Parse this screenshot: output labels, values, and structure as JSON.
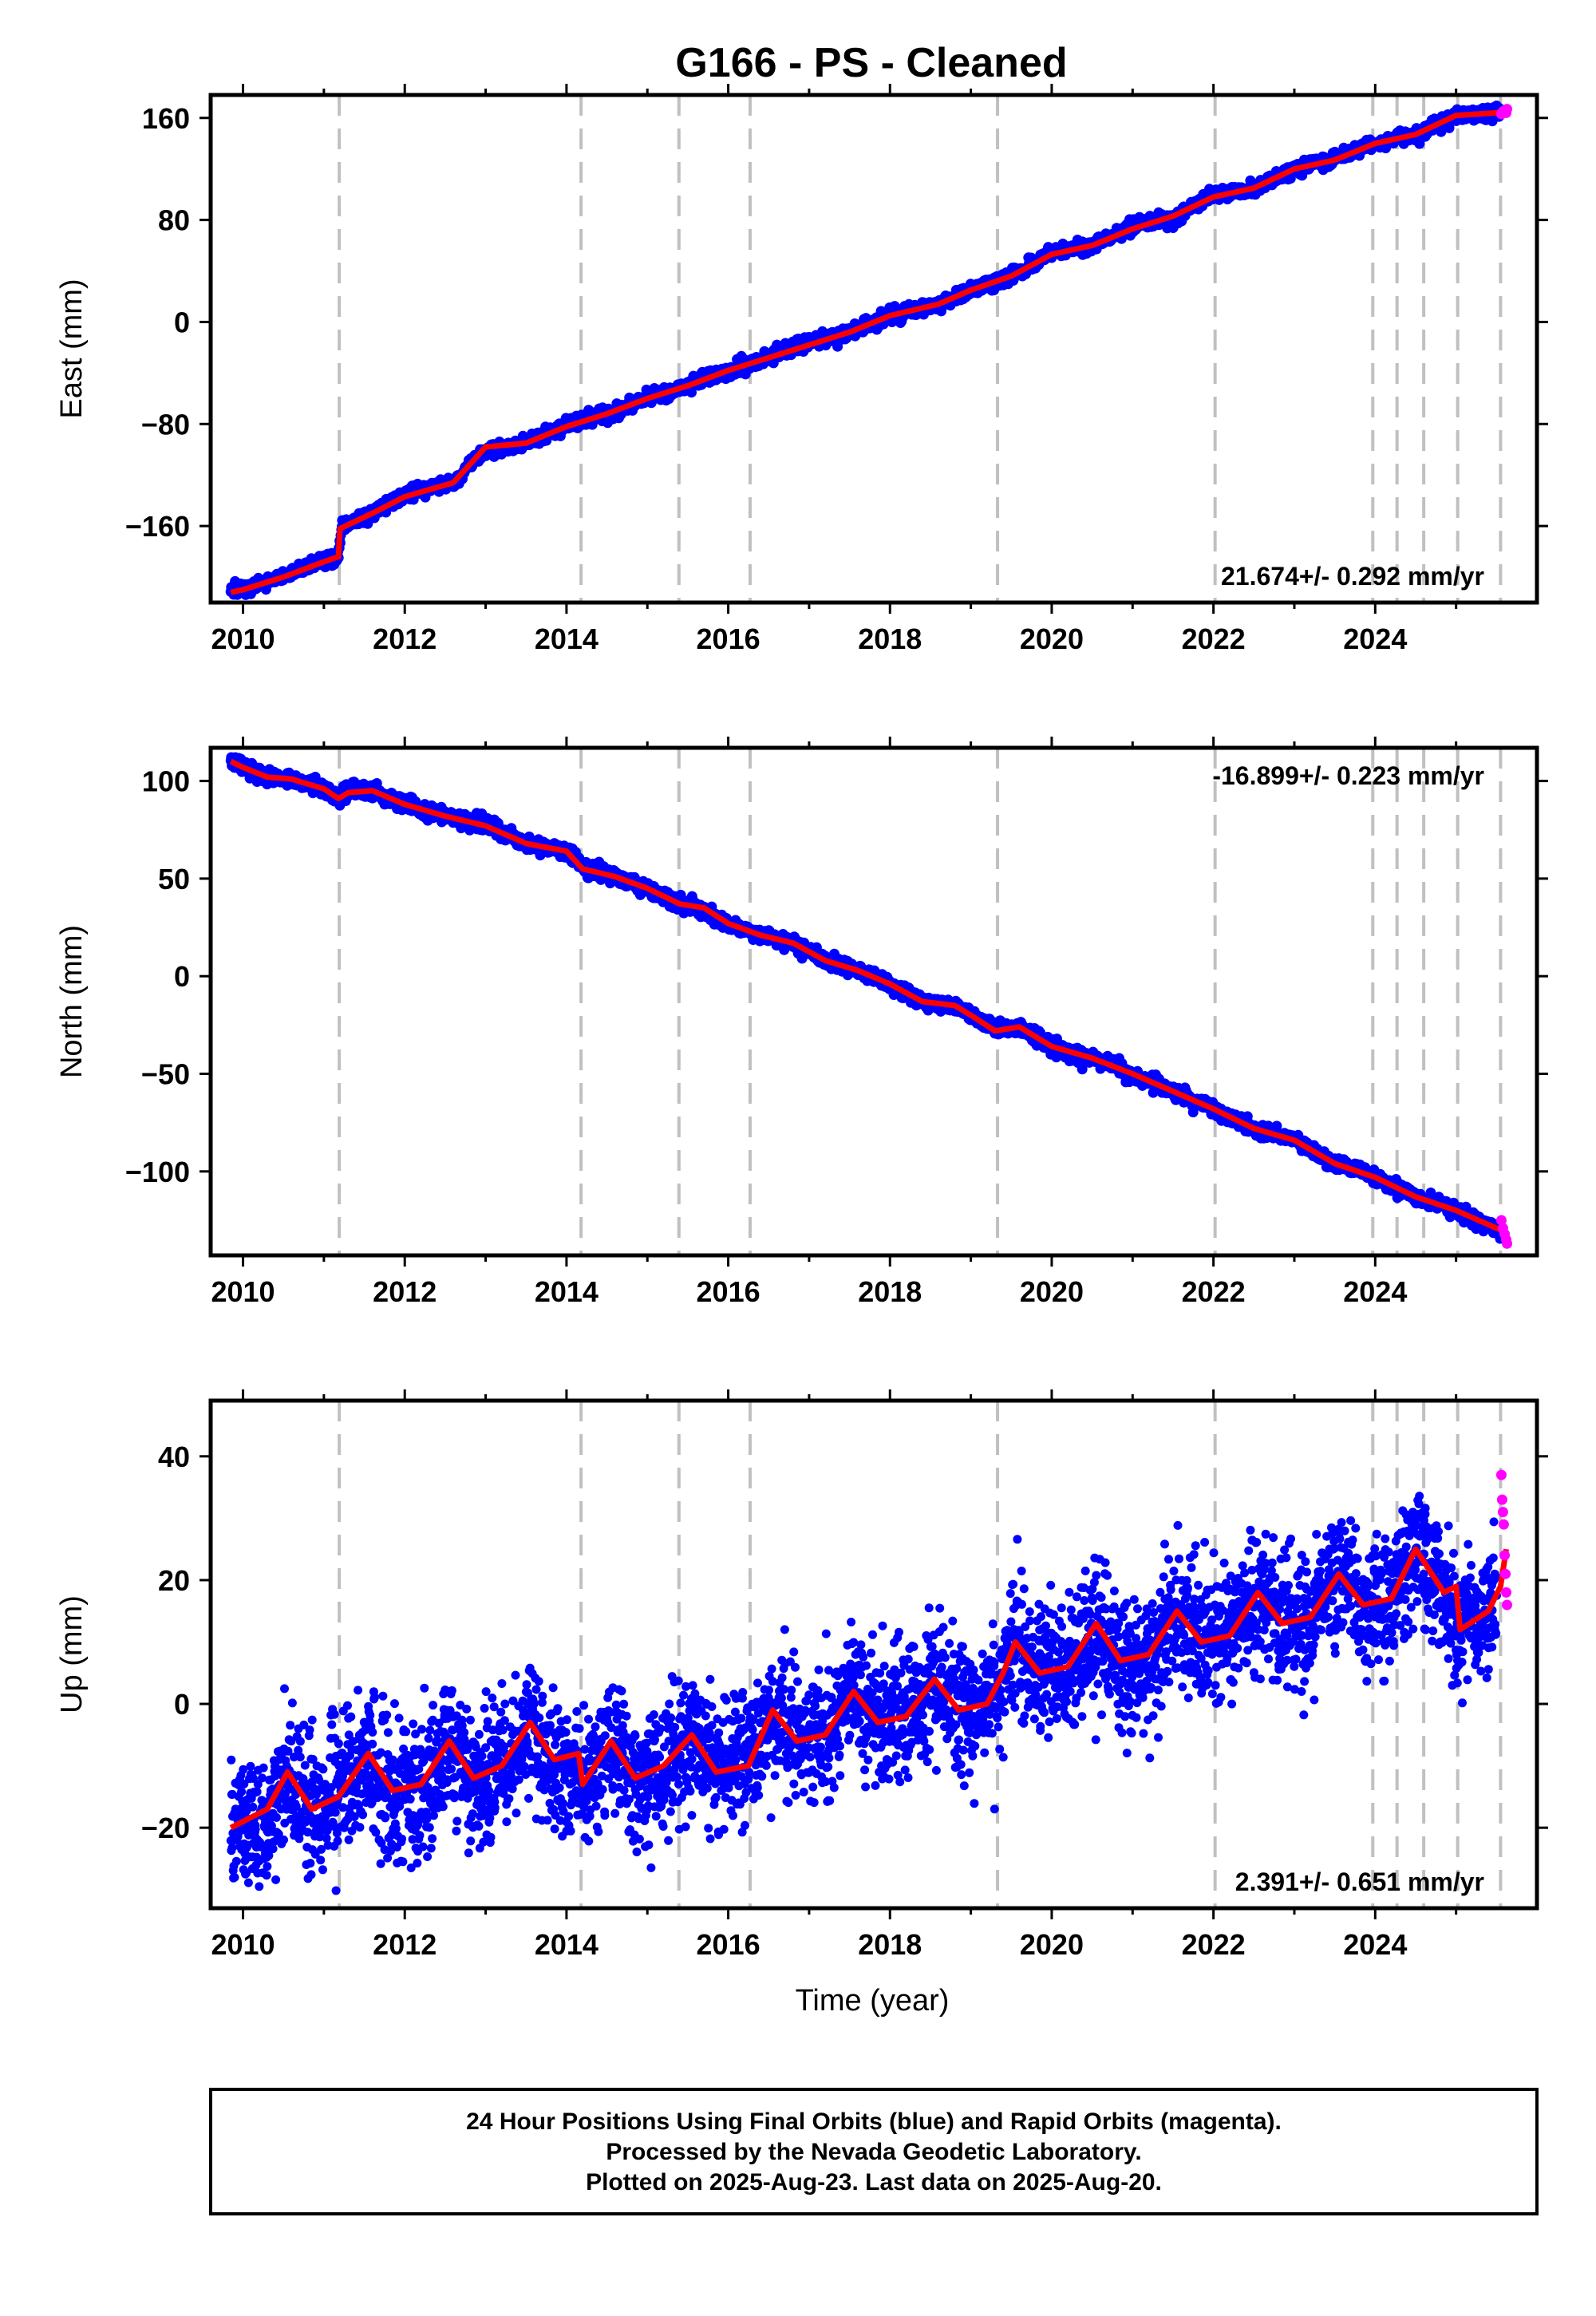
{
  "title": "G166  - PS - Cleaned",
  "footer": {
    "lines": [
      "24 Hour Positions Using Final Orbits (blue) and Rapid Orbits (magenta).",
      "Processed by the Nevada Geodetic Laboratory.",
      "Plotted on 2025-Aug-23. Last data on 2025-Aug-20."
    ]
  },
  "colors": {
    "final_orbits": "#0000ff",
    "rapid_orbits": "#ff00ff",
    "model_fit": "#ff0000",
    "equipment_change_lines": "#c0c0c0",
    "frame": "#000000"
  },
  "chart_data": [
    {
      "type": "scatter",
      "panel": "east",
      "ylabel": "East (mm)",
      "xlabel": "",
      "rate_label": "21.674+/- 0.292 mm/yr",
      "rate_placement": "bottom-right",
      "xlim": [
        2009.6,
        2026.0
      ],
      "ylim": [
        -220,
        178
      ],
      "xticks": [
        2010,
        2012,
        2014,
        2016,
        2018,
        2020,
        2022,
        2024
      ],
      "xtick_labels": [
        "2010",
        "2012",
        "2014",
        "2016",
        "2018",
        "2020",
        "2022",
        "2024"
      ],
      "yticks": [
        -160,
        -80,
        0,
        80,
        160
      ],
      "ytick_labels": [
        "−160",
        "−80",
        "0",
        "80",
        "160"
      ],
      "grid": false,
      "vertical_dashed_lines": [
        2011.19,
        2014.18,
        2015.39,
        2016.27,
        2019.33,
        2022.02,
        2023.97,
        2024.27,
        2024.6,
        2025.02,
        2025.55
      ],
      "series": [
        {
          "name": "Final Orbits",
          "style": "dense-points",
          "x": [
            2009.85,
            2010.0,
            2010.5,
            2011.1,
            2011.18,
            2011.22,
            2011.6,
            2012.0,
            2012.6,
            2013.0,
            2013.5,
            2014.0,
            2014.5,
            2015.0,
            2015.5,
            2016.0,
            2016.4,
            2016.8,
            2017.5,
            2018.0,
            2018.6,
            2019.0,
            2019.5,
            2020.0,
            2020.5,
            2021.0,
            2021.5,
            2022.0,
            2022.5,
            2023.0,
            2023.5,
            2024.0,
            2024.5,
            2025.0,
            2025.55
          ],
          "y": [
            -212,
            -210,
            -200,
            -185,
            -183,
            -160,
            -150,
            -135,
            -125,
            -100,
            -95,
            -80,
            -72,
            -60,
            -50,
            -38,
            -30,
            -20,
            -8,
            5,
            14,
            25,
            36,
            55,
            60,
            75,
            82,
            100,
            105,
            120,
            128,
            140,
            147,
            162,
            165
          ]
        },
        {
          "name": "Rapid Orbits",
          "style": "points",
          "x": [
            2025.56,
            2025.58,
            2025.6,
            2025.62,
            2025.63
          ],
          "y": [
            163,
            165,
            166,
            164,
            167
          ]
        }
      ],
      "fit": {
        "x": [
          2009.85,
          2010.0,
          2010.5,
          2011.0,
          2011.18,
          2011.2,
          2011.6,
          2012.0,
          2012.6,
          2013.0,
          2013.5,
          2014.0,
          2014.5,
          2015.0,
          2015.5,
          2016.0,
          2016.4,
          2016.8,
          2017.5,
          2018.0,
          2018.6,
          2019.0,
          2019.5,
          2020.0,
          2020.5,
          2021.0,
          2021.5,
          2022.0,
          2022.5,
          2023.0,
          2023.5,
          2024.0,
          2024.5,
          2025.0,
          2025.5,
          2025.63
        ],
        "y": [
          -212,
          -210,
          -200,
          -188,
          -184,
          -162,
          -150,
          -137,
          -126,
          -98,
          -95,
          -82,
          -72,
          -60,
          -50,
          -38,
          -30,
          -22,
          -8,
          5,
          14,
          25,
          36,
          53,
          60,
          73,
          83,
          98,
          105,
          120,
          127,
          140,
          147,
          162,
          164,
          166
        ]
      }
    },
    {
      "type": "scatter",
      "panel": "north",
      "ylabel": "North (mm)",
      "xlabel": "",
      "rate_label": "-16.899+/- 0.223 mm/yr",
      "rate_placement": "top-right",
      "xlim": [
        2009.6,
        2026.0
      ],
      "ylim": [
        -143,
        117
      ],
      "xticks": [
        2010,
        2012,
        2014,
        2016,
        2018,
        2020,
        2022,
        2024
      ],
      "xtick_labels": [
        "2010",
        "2012",
        "2014",
        "2016",
        "2018",
        "2020",
        "2022",
        "2024"
      ],
      "yticks": [
        -100,
        -50,
        0,
        50,
        100
      ],
      "ytick_labels": [
        "−100",
        "−50",
        "0",
        "50",
        "100"
      ],
      "grid": false,
      "vertical_dashed_lines": [
        2011.19,
        2014.18,
        2015.39,
        2016.27,
        2019.33,
        2022.02,
        2023.97,
        2024.27,
        2024.6,
        2025.02,
        2025.55
      ],
      "series": [
        {
          "name": "Final Orbits",
          "style": "dense-points",
          "x": [
            2009.85,
            2010.0,
            2010.3,
            2010.6,
            2011.0,
            2011.18,
            2011.3,
            2011.6,
            2012.0,
            2012.5,
            2013.0,
            2013.5,
            2014.0,
            2014.2,
            2014.6,
            2015.0,
            2015.4,
            2015.7,
            2016.0,
            2016.4,
            2016.8,
            2017.2,
            2017.6,
            2018.0,
            2018.4,
            2018.8,
            2019.0,
            2019.3,
            2019.6,
            2020.0,
            2020.5,
            2021.0,
            2021.5,
            2022.0,
            2022.5,
            2023.0,
            2023.5,
            2024.0,
            2024.5,
            2025.0,
            2025.55
          ],
          "y": [
            110,
            108,
            102,
            101,
            96,
            90,
            95,
            95,
            88,
            82,
            78,
            68,
            64,
            56,
            51,
            45,
            37,
            34,
            27,
            21,
            17,
            8,
            3,
            -4,
            -13,
            -16,
            -20,
            -27,
            -26,
            -36,
            -42,
            -50,
            -59,
            -68,
            -78,
            -84,
            -96,
            -103,
            -113,
            -120,
            -130
          ]
        },
        {
          "name": "Rapid Orbits",
          "style": "points",
          "x": [
            2025.56,
            2025.58,
            2025.6,
            2025.62,
            2025.63
          ],
          "y": [
            -125,
            -129,
            -132,
            -135,
            -137
          ]
        }
      ],
      "fit": {
        "x": [
          2009.85,
          2010.0,
          2010.3,
          2010.6,
          2011.0,
          2011.18,
          2011.3,
          2011.6,
          2012.0,
          2012.5,
          2013.0,
          2013.5,
          2014.0,
          2014.2,
          2014.6,
          2015.0,
          2015.4,
          2015.7,
          2016.0,
          2016.4,
          2016.8,
          2017.2,
          2017.6,
          2018.0,
          2018.4,
          2018.8,
          2019.0,
          2019.3,
          2019.6,
          2020.0,
          2020.5,
          2021.0,
          2021.5,
          2022.0,
          2022.5,
          2023.0,
          2023.5,
          2024.0,
          2024.5,
          2025.0,
          2025.55,
          2025.63
        ],
        "y": [
          110,
          107,
          102,
          101,
          96,
          91,
          94,
          95,
          88,
          82,
          77,
          68,
          64,
          55,
          51,
          45,
          37,
          35,
          27,
          21,
          17,
          8,
          3,
          -4,
          -13,
          -15,
          -20,
          -28,
          -26,
          -36,
          -42,
          -50,
          -59,
          -68,
          -78,
          -84,
          -96,
          -103,
          -113,
          -120,
          -130,
          -131
        ]
      }
    },
    {
      "type": "scatter",
      "panel": "up",
      "ylabel": "Up (mm)",
      "xlabel": "Time (year)",
      "rate_label": "2.391+/- 0.651 mm/yr",
      "rate_placement": "bottom-right",
      "xlim": [
        2009.6,
        2026.0
      ],
      "ylim": [
        -33,
        49
      ],
      "xticks": [
        2010,
        2012,
        2014,
        2016,
        2018,
        2020,
        2022,
        2024
      ],
      "xtick_labels": [
        "2010",
        "2012",
        "2014",
        "2016",
        "2018",
        "2020",
        "2022",
        "2024"
      ],
      "yticks": [
        -20,
        0,
        20,
        40
      ],
      "ytick_labels": [
        "−20",
        "0",
        "20",
        "40"
      ],
      "grid": false,
      "vertical_dashed_lines": [
        2011.19,
        2014.18,
        2015.39,
        2016.27,
        2019.33,
        2022.02,
        2023.97,
        2024.27,
        2024.6,
        2025.02,
        2025.55
      ],
      "series": [
        {
          "name": "Final Orbits",
          "style": "scattered-points",
          "x": [
            2009.85,
            2010.0,
            2010.3,
            2010.55,
            2010.85,
            2011.2,
            2011.55,
            2011.85,
            2012.2,
            2012.55,
            2012.85,
            2013.2,
            2013.55,
            2013.85,
            2014.18,
            2014.55,
            2014.85,
            2015.2,
            2015.55,
            2015.85,
            2016.2,
            2016.55,
            2016.85,
            2017.2,
            2017.55,
            2017.85,
            2018.2,
            2018.55,
            2018.85,
            2019.2,
            2019.55,
            2019.85,
            2020.2,
            2020.55,
            2020.85,
            2021.2,
            2021.55,
            2021.85,
            2022.2,
            2022.55,
            2022.85,
            2023.2,
            2023.55,
            2023.85,
            2024.2,
            2024.5,
            2024.85,
            2025.0,
            2025.3,
            2025.5
          ],
          "y": [
            -20,
            -19,
            -18,
            -11,
            -17,
            -15,
            -9,
            -15,
            -13,
            -6,
            -12,
            -11,
            -4,
            -10,
            -13,
            -6,
            -12,
            -10,
            -5,
            -11,
            -9,
            -1,
            -6,
            -5,
            2,
            -3,
            -2,
            4,
            -1,
            0,
            10,
            5,
            6,
            13,
            7,
            8,
            15,
            10,
            11,
            18,
            13,
            14,
            21,
            16,
            17,
            25,
            18,
            12,
            14,
            18
          ]
        },
        {
          "name": "Rapid Orbits",
          "style": "points",
          "x": [
            2025.56,
            2025.57,
            2025.58,
            2025.59,
            2025.6,
            2025.61,
            2025.62,
            2025.63
          ],
          "y": [
            37,
            33,
            31,
            29,
            24,
            21,
            18,
            16
          ]
        }
      ],
      "fit": {
        "x": [
          2009.85,
          2010.0,
          2010.3,
          2010.55,
          2010.85,
          2011.18,
          2011.55,
          2011.85,
          2012.2,
          2012.55,
          2012.85,
          2013.2,
          2013.55,
          2013.85,
          2014.15,
          2014.2,
          2014.55,
          2014.85,
          2015.2,
          2015.55,
          2015.85,
          2016.25,
          2016.55,
          2016.85,
          2017.2,
          2017.55,
          2017.85,
          2018.2,
          2018.55,
          2018.85,
          2019.2,
          2019.4,
          2019.55,
          2019.85,
          2020.2,
          2020.55,
          2020.85,
          2021.2,
          2021.55,
          2021.85,
          2022.2,
          2022.55,
          2022.85,
          2023.2,
          2023.55,
          2023.85,
          2024.2,
          2024.5,
          2024.85,
          2025.0,
          2025.05,
          2025.4,
          2025.55,
          2025.62
        ],
        "y": [
          -20,
          -19,
          -17,
          -11,
          -17,
          -15,
          -8,
          -14,
          -13,
          -6,
          -12,
          -10,
          -3,
          -9,
          -8,
          -13,
          -6,
          -12,
          -10,
          -5,
          -11,
          -10,
          -1,
          -6,
          -5,
          2,
          -3,
          -2,
          4,
          -1,
          0,
          5,
          10,
          5,
          6,
          13,
          7,
          8,
          15,
          10,
          11,
          18,
          13,
          14,
          21,
          16,
          17,
          25,
          18,
          19,
          12,
          15,
          19,
          25
        ]
      }
    }
  ]
}
